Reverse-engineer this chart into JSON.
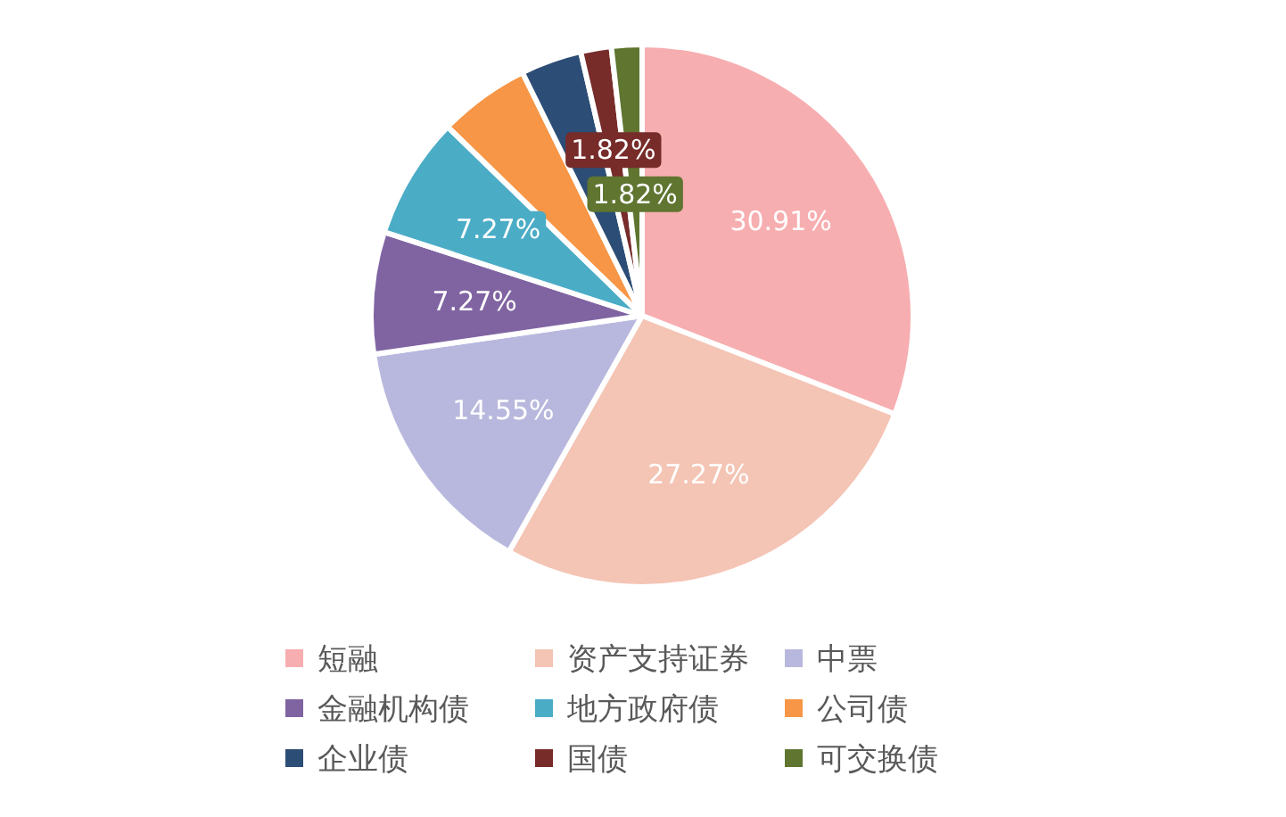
{
  "chart_data": {
    "type": "pie",
    "categories": [
      "短融",
      "资产支持证券",
      "中票",
      "金融机构债",
      "地方政府债",
      "公司债",
      "企业债",
      "国债",
      "可交换债"
    ],
    "values": [
      30.91,
      27.27,
      14.55,
      7.27,
      7.27,
      5.45,
      3.64,
      1.82,
      1.82
    ],
    "colors": [
      "#f7aeb0",
      "#f4c4b4",
      "#b8b8de",
      "#8064a2",
      "#4bacc6",
      "#f79646",
      "#2c4d75",
      "#772c2a",
      "#5f7530"
    ],
    "value_labels": [
      "30.91%",
      "27.27%",
      "14.55%",
      "7.27%",
      "7.27%",
      null,
      null,
      "1.82%",
      "1.82%"
    ],
    "legend": "bottom"
  }
}
